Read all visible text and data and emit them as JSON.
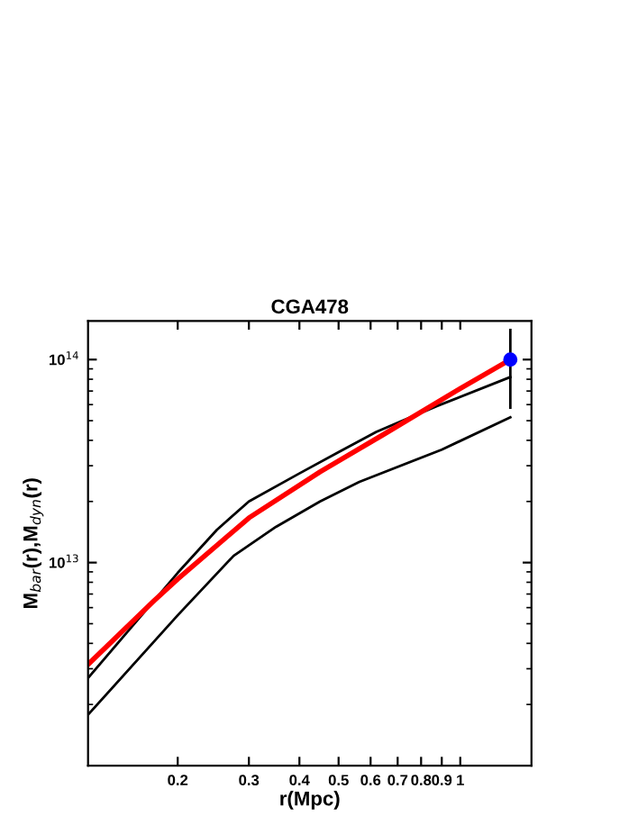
{
  "chart_data": {
    "type": "line",
    "title": "CGA478",
    "xlabel": "r(Mpc)",
    "ylabel": "M$_{bar}$(r),M$_{dyn}$(r)",
    "log": "xy",
    "xlim": [
      0.12,
      1.5
    ],
    "ylim": [
      1000000000000.0,
      155000000000000.0
    ],
    "xticks": [
      0.2,
      0.3,
      0.4,
      0.5,
      0.6,
      0.7,
      0.8,
      0.9,
      1
    ],
    "yticks": [
      {
        "value": 10000000000000.0,
        "label": "10$^{13}$"
      },
      {
        "value": 100000000000000.0,
        "label": "10$^{14}$"
      }
    ],
    "grid": false,
    "legend": false,
    "series": [
      {
        "color": "#000000",
        "x": [
          0.12,
          0.2,
          0.25,
          0.3,
          0.4,
          0.5,
          0.62,
          0.875,
          1.33
        ],
        "values": [
          2700000000000.0,
          8900000000000.0,
          14500000000000.0,
          20000000000000.0,
          27500000000000.0,
          35000000000000.0,
          44000000000000.0,
          59000000000000.0,
          82000000000000.0
        ]
      },
      {
        "color": "#000000",
        "x": [
          0.12,
          0.2,
          0.275,
          0.35,
          0.45,
          0.563,
          0.9,
          1.33
        ],
        "values": [
          1780000000000.0,
          5500000000000.0,
          10800000000000.0,
          15000000000000.0,
          20000000000000.0,
          25000000000000.0,
          36000000000000.0,
          52000000000000.0
        ]
      },
      {
        "color": "#ff0000",
        "x": [
          0.12,
          0.175,
          0.2,
          0.3,
          0.45,
          0.644,
          1.0,
          1.33
        ],
        "values": [
          3150000000000.0,
          6500000000000.0,
          8300000000000.0,
          16600000000000.0,
          28000000000000.0,
          42600000000000.0,
          72000000000000.0,
          100000000000000.0
        ]
      },
      {
        "type": "scatter",
        "color": "#0000ff",
        "marker": "circle",
        "x": [
          1.33
        ],
        "values": [
          100000000000000.0
        ],
        "errors": [
          [
            58000000000000.0,
            140000000000000.0
          ]
        ]
      }
    ]
  }
}
